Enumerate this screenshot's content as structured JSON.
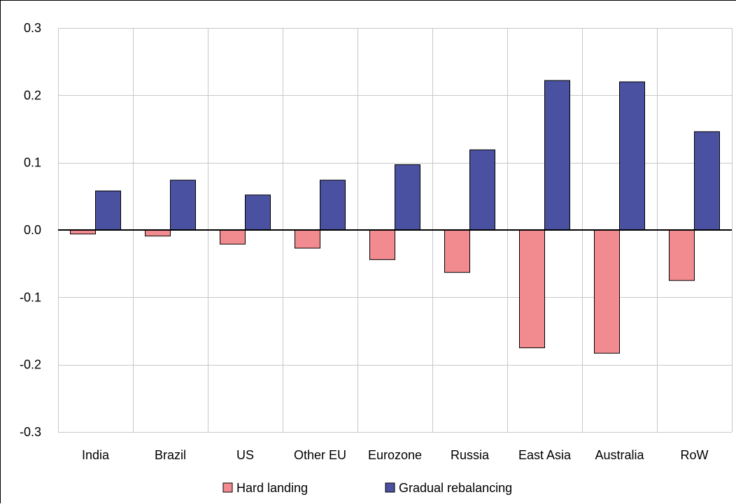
{
  "chart_data": {
    "type": "bar",
    "categories": [
      "India",
      "Brazil",
      "US",
      "Other EU",
      "Eurozone",
      "Russia",
      "East Asia",
      "Australia",
      "RoW"
    ],
    "series": [
      {
        "name": "Hard landing",
        "color": "#F28B8F",
        "values": [
          -0.006,
          -0.009,
          -0.021,
          -0.027,
          -0.044,
          -0.063,
          -0.175,
          -0.183,
          -0.075
        ]
      },
      {
        "name": "Gradual rebalancing",
        "color": "#4A51A0",
        "values": [
          0.058,
          0.074,
          0.052,
          0.074,
          0.097,
          0.119,
          0.222,
          0.22,
          0.146
        ]
      }
    ],
    "ylim": [
      -0.3,
      0.3
    ],
    "yticks": [
      -0.3,
      -0.2,
      -0.1,
      0.0,
      0.1,
      0.2,
      0.3
    ],
    "ytick_labels": [
      "-0.3",
      "-0.2",
      "-0.1",
      "0.0",
      "0.1",
      "0.2",
      "0.3"
    ],
    "grid": true,
    "legend_position": "bottom",
    "title": "",
    "xlabel": "",
    "ylabel": ""
  }
}
